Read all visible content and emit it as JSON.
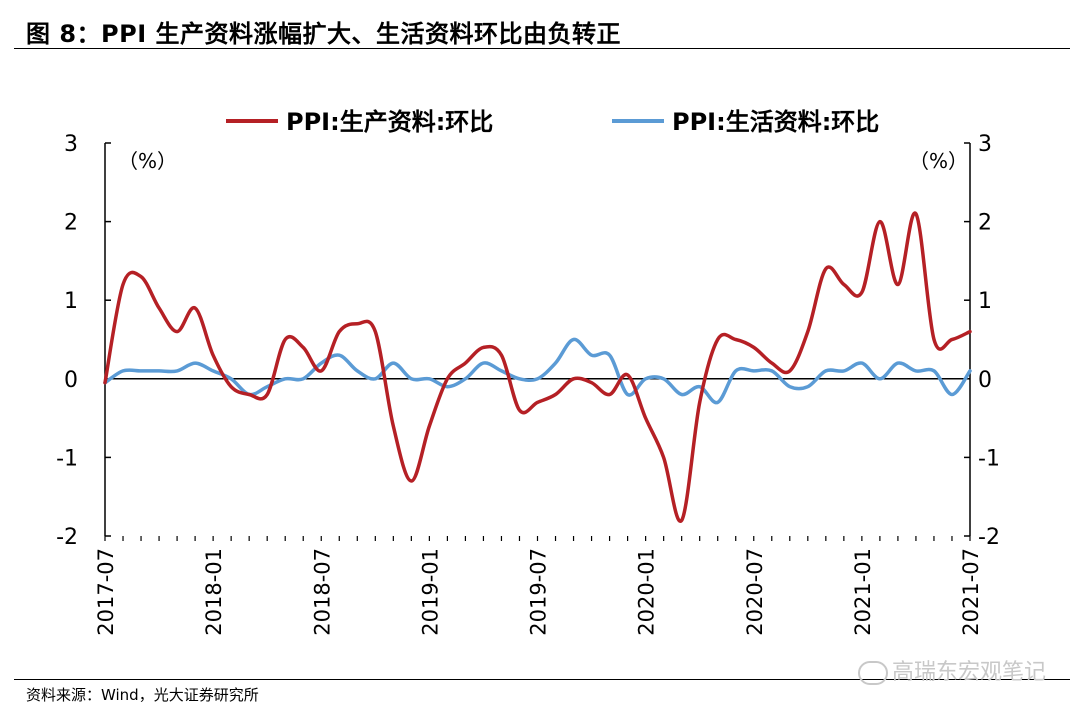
{
  "figure": {
    "title": "图 8：PPI 生产资料涨幅扩大、生活资料环比由负转正",
    "source": "资料来源：Wind，光大证券研究所",
    "watermark": "高瑞东宏观笔记"
  },
  "chart_data": {
    "type": "line",
    "title": "图 8：PPI 生产资料涨幅扩大、生活资料环比由负转正",
    "unit_left": "（%）",
    "unit_right": "（%）",
    "xlabel": "",
    "ylabel": "%",
    "ylim": [
      -2,
      3
    ],
    "yticks": [
      -2,
      -1,
      0,
      1,
      2,
      3
    ],
    "ytick_labels": [
      "-2",
      "-1",
      "0",
      "1",
      "2",
      "3"
    ],
    "x_tick_labels": [
      "2017-07",
      "2018-01",
      "2018-07",
      "2019-01",
      "2019-07",
      "2020-01",
      "2020-07",
      "2021-01",
      "2021-07"
    ],
    "x": [
      "2017-07",
      "2017-08",
      "2017-09",
      "2017-10",
      "2017-11",
      "2017-12",
      "2018-01",
      "2018-02",
      "2018-03",
      "2018-04",
      "2018-05",
      "2018-06",
      "2018-07",
      "2018-08",
      "2018-09",
      "2018-10",
      "2018-11",
      "2018-12",
      "2019-01",
      "2019-02",
      "2019-03",
      "2019-04",
      "2019-05",
      "2019-06",
      "2019-07",
      "2019-08",
      "2019-09",
      "2019-10",
      "2019-11",
      "2019-12",
      "2020-01",
      "2020-02",
      "2020-03",
      "2020-04",
      "2020-05",
      "2020-06",
      "2020-07",
      "2020-08",
      "2020-09",
      "2020-10",
      "2020-11",
      "2020-12",
      "2021-01",
      "2021-02",
      "2021-03",
      "2021-04",
      "2021-05",
      "2021-06",
      "2021-07"
    ],
    "legend_position": "top",
    "grid": false,
    "colors": {
      "production": "#b52025",
      "living": "#5b9bd5",
      "axis": "#000000"
    },
    "series": [
      {
        "name": "PPI:生产资料:环比",
        "values": [
          -0.05,
          1.2,
          1.3,
          0.9,
          0.6,
          0.9,
          0.3,
          -0.1,
          -0.2,
          -0.2,
          0.5,
          0.4,
          0.1,
          0.6,
          0.7,
          0.6,
          -0.6,
          -1.3,
          -0.6,
          0.0,
          0.2,
          0.4,
          0.3,
          -0.4,
          -0.3,
          -0.2,
          0.0,
          -0.05,
          -0.2,
          0.05,
          -0.5,
          -1.0,
          -1.8,
          -0.3,
          0.5,
          0.5,
          0.4,
          0.2,
          0.1,
          0.6,
          1.4,
          1.2,
          1.1,
          2.0,
          1.2,
          2.1,
          0.5,
          0.5,
          0.6
        ]
      },
      {
        "name": "PPI:生活资料:环比",
        "values": [
          -0.05,
          0.1,
          0.1,
          0.1,
          0.1,
          0.2,
          0.1,
          0.0,
          -0.2,
          -0.1,
          0.0,
          0.0,
          0.2,
          0.3,
          0.1,
          0.0,
          0.2,
          0.0,
          0.0,
          -0.1,
          0.0,
          0.2,
          0.1,
          0.0,
          0.0,
          0.2,
          0.5,
          0.3,
          0.3,
          -0.2,
          0.0,
          0.0,
          -0.2,
          -0.1,
          -0.3,
          0.1,
          0.1,
          0.1,
          -0.1,
          -0.1,
          0.1,
          0.1,
          0.2,
          0.0,
          0.2,
          0.1,
          0.1,
          -0.2,
          0.1
        ]
      }
    ]
  }
}
